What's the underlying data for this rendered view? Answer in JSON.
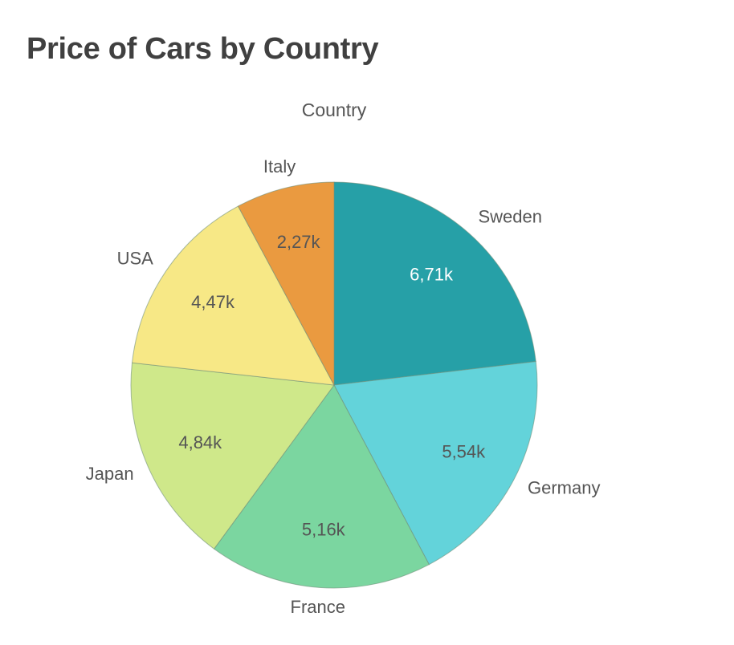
{
  "chart": {
    "title": "Price of Cars by Country",
    "legend_title": "Country"
  },
  "chart_data": {
    "type": "pie",
    "title": "Price of Cars by Country",
    "legend_title": "Country",
    "start_angle_deg": 0,
    "direction": "clockwise",
    "categories": [
      "Sweden",
      "Germany",
      "France",
      "Japan",
      "USA",
      "Italy"
    ],
    "values": [
      6710,
      5540,
      5160,
      4840,
      4470,
      2270
    ],
    "value_labels": [
      "6,71k",
      "5,54k",
      "5,16k",
      "4,84k",
      "4,47k",
      "2,27k"
    ],
    "colors": [
      "#26a0a7",
      "#63d3da",
      "#7bd6a0",
      "#cfe88a",
      "#f7e886",
      "#ea9a40"
    ],
    "value_label_colors": [
      "#ffffff",
      "#555555",
      "#555555",
      "#555555",
      "#555555",
      "#555555"
    ]
  }
}
